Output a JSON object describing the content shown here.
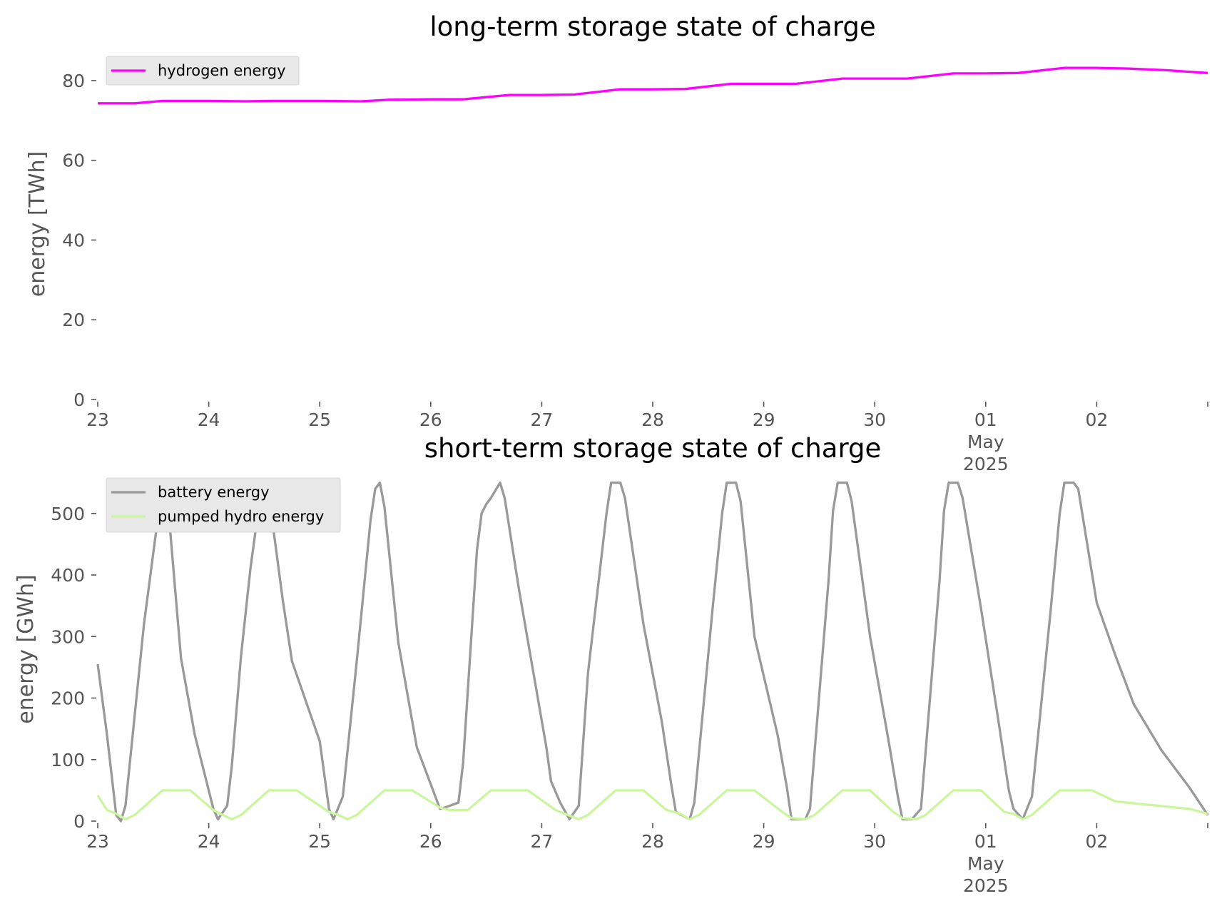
{
  "chart_data": [
    {
      "type": "line",
      "title": "long-term storage state of charge",
      "ylabel": "energy [TWh]",
      "xlabel": "",
      "xlim": [
        "2025-04-23T00:00",
        "2025-05-03T00:00"
      ],
      "ylim": [
        0,
        85
      ],
      "yticks": [
        "0",
        "20",
        "40",
        "60",
        "80"
      ],
      "xtick_labels": [
        {
          "t": "2025-04-23T00:00",
          "lines": [
            "23"
          ]
        },
        {
          "t": "2025-04-24T00:00",
          "lines": [
            "24"
          ]
        },
        {
          "t": "2025-04-25T00:00",
          "lines": [
            "25"
          ]
        },
        {
          "t": "2025-04-26T00:00",
          "lines": [
            "26"
          ]
        },
        {
          "t": "2025-04-27T00:00",
          "lines": [
            "27"
          ]
        },
        {
          "t": "2025-04-28T00:00",
          "lines": [
            "28"
          ]
        },
        {
          "t": "2025-04-29T00:00",
          "lines": [
            "29"
          ]
        },
        {
          "t": "2025-04-30T00:00",
          "lines": [
            "30"
          ]
        },
        {
          "t": "2025-05-01T00:00",
          "lines": [
            "01",
            "May",
            "2025"
          ]
        },
        {
          "t": "2025-05-02T00:00",
          "lines": [
            "02"
          ]
        },
        {
          "t": "2025-05-03T00:00",
          "lines": [
            ""
          ]
        }
      ],
      "grid": false,
      "legend_position": "top-left",
      "series": [
        {
          "name": "hydrogen energy",
          "color": "#ff00ff",
          "points": [
            [
              "2025-04-23T00:00",
              74.3
            ],
            [
              "2025-04-23T08:00",
              74.3
            ],
            [
              "2025-04-23T14:00",
              74.9
            ],
            [
              "2025-04-24T00:00",
              74.9
            ],
            [
              "2025-04-24T08:00",
              74.8
            ],
            [
              "2025-04-24T14:00",
              74.9
            ],
            [
              "2025-04-25T00:00",
              74.9
            ],
            [
              "2025-04-25T09:00",
              74.8
            ],
            [
              "2025-04-25T15:00",
              75.2
            ],
            [
              "2025-04-26T00:00",
              75.3
            ],
            [
              "2025-04-26T07:00",
              75.3
            ],
            [
              "2025-04-26T17:00",
              76.4
            ],
            [
              "2025-04-27T00:00",
              76.4
            ],
            [
              "2025-04-27T07:00",
              76.5
            ],
            [
              "2025-04-27T17:00",
              77.8
            ],
            [
              "2025-04-28T00:00",
              77.8
            ],
            [
              "2025-04-28T07:00",
              77.9
            ],
            [
              "2025-04-28T17:00",
              79.2
            ],
            [
              "2025-04-29T00:00",
              79.2
            ],
            [
              "2025-04-29T07:00",
              79.2
            ],
            [
              "2025-04-29T17:00",
              80.5
            ],
            [
              "2025-04-30T00:00",
              80.5
            ],
            [
              "2025-04-30T07:00",
              80.5
            ],
            [
              "2025-04-30T17:00",
              81.8
            ],
            [
              "2025-05-01T00:00",
              81.8
            ],
            [
              "2025-05-01T07:00",
              81.9
            ],
            [
              "2025-05-01T17:00",
              83.2
            ],
            [
              "2025-05-02T00:00",
              83.2
            ],
            [
              "2025-05-02T07:00",
              83.0
            ],
            [
              "2025-05-02T15:00",
              82.6
            ],
            [
              "2025-05-03T00:00",
              81.9
            ]
          ]
        }
      ]
    },
    {
      "type": "line",
      "title": "short-term storage state of charge",
      "ylabel": "energy [GWh]",
      "xlabel": "",
      "xlim": [
        "2025-04-23T00:00",
        "2025-05-03T00:00"
      ],
      "ylim": [
        0,
        560
      ],
      "yticks": [
        "0",
        "100",
        "200",
        "300",
        "400",
        "500"
      ],
      "xtick_labels": [
        {
          "t": "2025-04-23T00:00",
          "lines": [
            "23"
          ]
        },
        {
          "t": "2025-04-24T00:00",
          "lines": [
            "24"
          ]
        },
        {
          "t": "2025-04-25T00:00",
          "lines": [
            "25"
          ]
        },
        {
          "t": "2025-04-26T00:00",
          "lines": [
            "26"
          ]
        },
        {
          "t": "2025-04-27T00:00",
          "lines": [
            "27"
          ]
        },
        {
          "t": "2025-04-28T00:00",
          "lines": [
            "28"
          ]
        },
        {
          "t": "2025-04-29T00:00",
          "lines": [
            "29"
          ]
        },
        {
          "t": "2025-04-30T00:00",
          "lines": [
            "30"
          ]
        },
        {
          "t": "2025-05-01T00:00",
          "lines": [
            "01",
            "May",
            "2025"
          ]
        },
        {
          "t": "2025-05-02T00:00",
          "lines": [
            "02"
          ]
        },
        {
          "t": "2025-05-03T00:00",
          "lines": [
            ""
          ]
        }
      ],
      "grid": false,
      "legend_position": "top-left",
      "series": [
        {
          "name": "battery energy",
          "color": "#999999",
          "points": [
            [
              "2025-04-23T00:00",
              255
            ],
            [
              "2025-04-23T02:00",
              140
            ],
            [
              "2025-04-23T04:00",
              10
            ],
            [
              "2025-04-23T05:00",
              0
            ],
            [
              "2025-04-23T06:00",
              25
            ],
            [
              "2025-04-23T10:00",
              320
            ],
            [
              "2025-04-23T14:00",
              550
            ],
            [
              "2025-04-23T15:00",
              530
            ],
            [
              "2025-04-23T18:00",
              265
            ],
            [
              "2025-04-23T21:00",
              140
            ],
            [
              "2025-04-24T01:00",
              20
            ],
            [
              "2025-04-24T02:00",
              3
            ],
            [
              "2025-04-24T04:00",
              25
            ],
            [
              "2025-04-24T05:00",
              90
            ],
            [
              "2025-04-24T07:00",
              270
            ],
            [
              "2025-04-24T09:00",
              410
            ],
            [
              "2025-04-24T11:00",
              520
            ],
            [
              "2025-04-24T12:00",
              550
            ],
            [
              "2025-04-24T13:00",
              530
            ],
            [
              "2025-04-24T16:00",
              360
            ],
            [
              "2025-04-24T18:00",
              260
            ],
            [
              "2025-04-25T00:00",
              130
            ],
            [
              "2025-04-25T02:00",
              20
            ],
            [
              "2025-04-25T03:00",
              3
            ],
            [
              "2025-04-25T05:00",
              40
            ],
            [
              "2025-04-25T08:00",
              260
            ],
            [
              "2025-04-25T11:00",
              490
            ],
            [
              "2025-04-25T12:00",
              540
            ],
            [
              "2025-04-25T13:00",
              550
            ],
            [
              "2025-04-25T14:00",
              510
            ],
            [
              "2025-04-25T17:00",
              290
            ],
            [
              "2025-04-25T21:00",
              120
            ],
            [
              "2025-04-26T02:00",
              20
            ],
            [
              "2025-04-26T03:00",
              22
            ],
            [
              "2025-04-26T06:00",
              30
            ],
            [
              "2025-04-26T07:00",
              95
            ],
            [
              "2025-04-26T10:00",
              440
            ],
            [
              "2025-04-26T11:00",
              500
            ],
            [
              "2025-04-26T12:00",
              515
            ],
            [
              "2025-04-26T13:00",
              525
            ],
            [
              "2025-04-26T15:00",
              550
            ],
            [
              "2025-04-26T16:00",
              525
            ],
            [
              "2025-04-26T19:00",
              380
            ],
            [
              "2025-04-26T22:00",
              250
            ],
            [
              "2025-04-27T01:00",
              120
            ],
            [
              "2025-04-27T02:00",
              65
            ],
            [
              "2025-04-27T04:00",
              30
            ],
            [
              "2025-04-27T06:00",
              3
            ],
            [
              "2025-04-27T08:00",
              25
            ],
            [
              "2025-04-27T10:00",
              240
            ],
            [
              "2025-04-27T14:00",
              500
            ],
            [
              "2025-04-27T15:00",
              550
            ],
            [
              "2025-04-27T17:00",
              550
            ],
            [
              "2025-04-27T18:00",
              525
            ],
            [
              "2025-04-27T22:00",
              320
            ],
            [
              "2025-04-28T02:00",
              160
            ],
            [
              "2025-04-28T04:00",
              60
            ],
            [
              "2025-04-28T05:00",
              15
            ],
            [
              "2025-04-28T08:00",
              3
            ],
            [
              "2025-04-28T09:00",
              30
            ],
            [
              "2025-04-28T13:00",
              350
            ],
            [
              "2025-04-28T15:00",
              500
            ],
            [
              "2025-04-28T16:00",
              550
            ],
            [
              "2025-04-28T18:00",
              550
            ],
            [
              "2025-04-28T19:00",
              520
            ],
            [
              "2025-04-28T22:00",
              300
            ],
            [
              "2025-04-29T03:00",
              140
            ],
            [
              "2025-04-29T05:00",
              55
            ],
            [
              "2025-04-29T06:00",
              3
            ],
            [
              "2025-04-29T09:00",
              3
            ],
            [
              "2025-04-29T10:00",
              20
            ],
            [
              "2025-04-29T14:00",
              390
            ],
            [
              "2025-04-29T15:00",
              505
            ],
            [
              "2025-04-29T16:00",
              550
            ],
            [
              "2025-04-29T18:00",
              550
            ],
            [
              "2025-04-29T19:00",
              520
            ],
            [
              "2025-04-29T23:00",
              300
            ],
            [
              "2025-04-30T03:00",
              130
            ],
            [
              "2025-04-30T05:00",
              40
            ],
            [
              "2025-04-30T06:00",
              3
            ],
            [
              "2025-04-30T08:00",
              3
            ],
            [
              "2025-04-30T10:00",
              20
            ],
            [
              "2025-04-30T14:00",
              390
            ],
            [
              "2025-04-30T15:00",
              505
            ],
            [
              "2025-04-30T16:00",
              550
            ],
            [
              "2025-04-30T18:00",
              550
            ],
            [
              "2025-04-30T19:00",
              525
            ],
            [
              "2025-04-30T23:00",
              345
            ],
            [
              "2025-05-01T03:00",
              150
            ],
            [
              "2025-05-01T05:00",
              50
            ],
            [
              "2025-05-01T06:00",
              20
            ],
            [
              "2025-05-01T08:00",
              3
            ],
            [
              "2025-05-01T10:00",
              40
            ],
            [
              "2025-05-01T14:00",
              340
            ],
            [
              "2025-05-01T16:00",
              500
            ],
            [
              "2025-05-01T17:00",
              550
            ],
            [
              "2025-05-01T19:00",
              550
            ],
            [
              "2025-05-01T20:00",
              540
            ],
            [
              "2025-05-02T00:00",
              355
            ],
            [
              "2025-05-02T04:00",
              270
            ],
            [
              "2025-05-02T08:00",
              190
            ],
            [
              "2025-05-02T14:00",
              115
            ],
            [
              "2025-05-02T20:00",
              55
            ],
            [
              "2025-05-02T24:00",
              10
            ]
          ]
        },
        {
          "name": "pumped hydro energy",
          "color": "#ccf59f",
          "points": [
            [
              "2025-04-23T00:00",
              42
            ],
            [
              "2025-04-23T02:00",
              18
            ],
            [
              "2025-04-23T04:00",
              12
            ],
            [
              "2025-04-23T06:00",
              3
            ],
            [
              "2025-04-23T08:00",
              10
            ],
            [
              "2025-04-23T14:00",
              50
            ],
            [
              "2025-04-23T20:00",
              50
            ],
            [
              "2025-04-24T01:00",
              18
            ],
            [
              "2025-04-24T03:00",
              10
            ],
            [
              "2025-04-24T05:00",
              3
            ],
            [
              "2025-04-24T07:00",
              10
            ],
            [
              "2025-04-24T13:00",
              50
            ],
            [
              "2025-04-24T19:00",
              50
            ],
            [
              "2025-04-25T02:00",
              15
            ],
            [
              "2025-04-25T04:00",
              10
            ],
            [
              "2025-04-25T06:00",
              3
            ],
            [
              "2025-04-25T08:00",
              10
            ],
            [
              "2025-04-25T14:00",
              50
            ],
            [
              "2025-04-25T20:00",
              50
            ],
            [
              "2025-04-26T02:00",
              22
            ],
            [
              "2025-04-26T04:00",
              18
            ],
            [
              "2025-04-26T08:00",
              18
            ],
            [
              "2025-04-26T13:00",
              50
            ],
            [
              "2025-04-26T21:00",
              50
            ],
            [
              "2025-04-27T03:00",
              18
            ],
            [
              "2025-04-27T05:00",
              12
            ],
            [
              "2025-04-27T08:00",
              3
            ],
            [
              "2025-04-27T10:00",
              10
            ],
            [
              "2025-04-27T16:00",
              50
            ],
            [
              "2025-04-27T22:00",
              50
            ],
            [
              "2025-04-28T03:00",
              18
            ],
            [
              "2025-04-28T06:00",
              12
            ],
            [
              "2025-04-28T08:00",
              3
            ],
            [
              "2025-04-28T10:00",
              10
            ],
            [
              "2025-04-28T16:00",
              50
            ],
            [
              "2025-04-28T22:00",
              50
            ],
            [
              "2025-04-29T04:00",
              15
            ],
            [
              "2025-04-29T06:00",
              5
            ],
            [
              "2025-04-29T09:00",
              3
            ],
            [
              "2025-04-29T11:00",
              10
            ],
            [
              "2025-04-29T17:00",
              50
            ],
            [
              "2025-04-29T23:00",
              50
            ],
            [
              "2025-04-30T04:00",
              15
            ],
            [
              "2025-04-30T06:00",
              5
            ],
            [
              "2025-04-30T09:00",
              3
            ],
            [
              "2025-04-30T11:00",
              10
            ],
            [
              "2025-04-30T17:00",
              50
            ],
            [
              "2025-04-30T23:00",
              50
            ],
            [
              "2025-05-01T04:00",
              15
            ],
            [
              "2025-05-01T06:00",
              12
            ],
            [
              "2025-05-01T08:00",
              3
            ],
            [
              "2025-05-01T10:00",
              10
            ],
            [
              "2025-05-01T16:00",
              50
            ],
            [
              "2025-05-01T23:00",
              50
            ],
            [
              "2025-05-02T04:00",
              32
            ],
            [
              "2025-05-02T12:00",
              26
            ],
            [
              "2025-05-02T20:00",
              20
            ],
            [
              "2025-05-02T24:00",
              12
            ]
          ]
        }
      ]
    }
  ]
}
